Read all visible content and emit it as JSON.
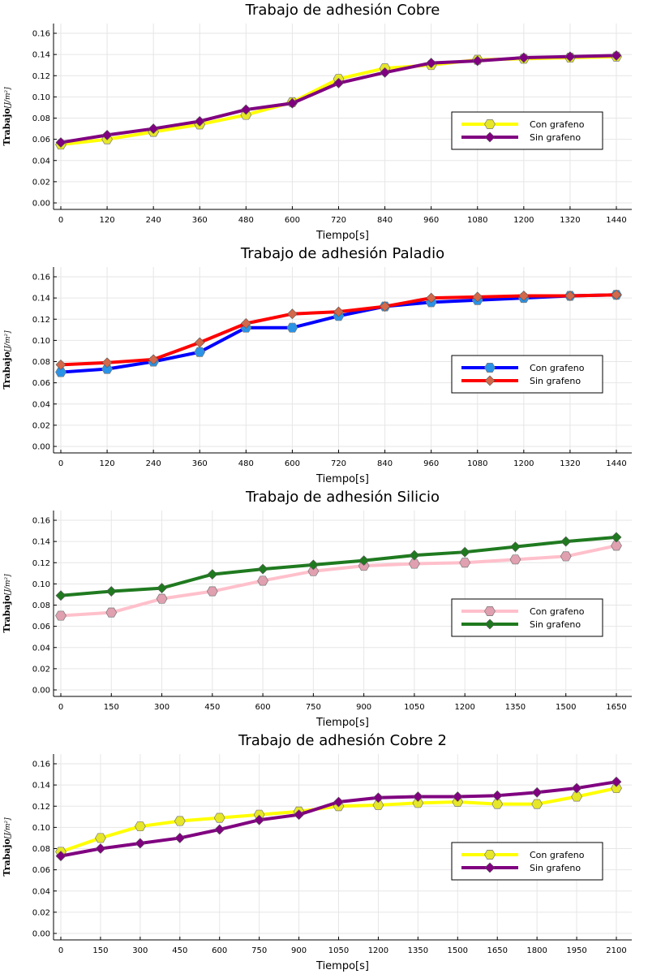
{
  "chart_data": [
    {
      "type": "line",
      "title": "Trabajo de adhesión Cobre",
      "xlabel": "Tiempo[s]",
      "ylabel": "Trabajo",
      "ylabel_unit": "[J/m²]",
      "x": [
        0,
        120,
        240,
        360,
        480,
        600,
        720,
        840,
        960,
        1080,
        1200,
        1320,
        1440
      ],
      "xlim": [
        0,
        1440
      ],
      "ylim": [
        0,
        0.16
      ],
      "yticks": [
        "0.00",
        "0.02",
        "0.04",
        "0.06",
        "0.08",
        "0.10",
        "0.12",
        "0.14",
        "0.16"
      ],
      "grid": true,
      "legend_position": "right",
      "series": [
        {
          "name": "Con grafeno",
          "color": "#ffff00",
          "marker": "hexagon",
          "marker_color": "#e6e62a",
          "values": [
            0.055,
            0.06,
            0.067,
            0.074,
            0.083,
            0.095,
            0.117,
            0.127,
            0.13,
            0.135,
            0.136,
            0.137,
            0.138
          ]
        },
        {
          "name": "Sin grafeno",
          "color": "#800080",
          "marker": "diamond",
          "marker_color": "#800080",
          "values": [
            0.057,
            0.064,
            0.07,
            0.077,
            0.088,
            0.094,
            0.113,
            0.123,
            0.132,
            0.134,
            0.137,
            0.138,
            0.139
          ]
        }
      ]
    },
    {
      "type": "line",
      "title": "Trabajo de adhesión Paladio",
      "xlabel": "Tiempo[s]",
      "ylabel": "Trabajo",
      "ylabel_unit": "[J/m²]",
      "x": [
        0,
        120,
        240,
        360,
        480,
        600,
        720,
        840,
        960,
        1080,
        1200,
        1320,
        1440
      ],
      "xlim": [
        0,
        1440
      ],
      "ylim": [
        0,
        0.16
      ],
      "yticks": [
        "0.00",
        "0.02",
        "0.04",
        "0.06",
        "0.08",
        "0.10",
        "0.12",
        "0.14",
        "0.16"
      ],
      "grid": true,
      "legend_position": "right",
      "series": [
        {
          "name": "Con grafeno",
          "color": "#0000ff",
          "marker": "hexagon",
          "marker_color": "#2a93e6",
          "values": [
            0.07,
            0.073,
            0.08,
            0.089,
            0.112,
            0.112,
            0.123,
            0.132,
            0.136,
            0.138,
            0.14,
            0.142,
            0.143
          ]
        },
        {
          "name": "Sin grafeno",
          "color": "#ff0000",
          "marker": "diamond",
          "marker_color": "#d2694a",
          "values": [
            0.077,
            0.079,
            0.082,
            0.098,
            0.116,
            0.125,
            0.127,
            0.132,
            0.14,
            0.141,
            0.142,
            0.142,
            0.143
          ]
        }
      ]
    },
    {
      "type": "line",
      "title": "Trabajo de adhesión Silicio",
      "xlabel": "Tiempo[s]",
      "ylabel": "Trabajo",
      "ylabel_unit": "[J/m²]",
      "x": [
        0,
        150,
        300,
        450,
        600,
        750,
        900,
        1050,
        1200,
        1350,
        1500,
        1650
      ],
      "xlim": [
        0,
        1650
      ],
      "ylim": [
        0,
        0.16
      ],
      "yticks": [
        "0.00",
        "0.02",
        "0.04",
        "0.06",
        "0.08",
        "0.10",
        "0.12",
        "0.14",
        "0.16"
      ],
      "grid": true,
      "legend_position": "right",
      "series": [
        {
          "name": "Con grafeno",
          "color": "#ffc0cb",
          "marker": "hexagon",
          "marker_color": "#e0a0b0",
          "values": [
            0.07,
            0.073,
            0.086,
            0.093,
            0.103,
            0.112,
            0.117,
            0.119,
            0.12,
            0.123,
            0.126,
            0.136
          ]
        },
        {
          "name": "Sin grafeno",
          "color": "#1f7a1f",
          "marker": "diamond",
          "marker_color": "#1f7a1f",
          "values": [
            0.089,
            0.093,
            0.096,
            0.109,
            0.114,
            0.118,
            0.122,
            0.127,
            0.13,
            0.135,
            0.14,
            0.144
          ]
        }
      ]
    },
    {
      "type": "line",
      "title": "Trabajo de adhesión Cobre 2",
      "xlabel": "Tiempo[s]",
      "ylabel": "Trabajo",
      "ylabel_unit": "[J/m²]",
      "x": [
        0,
        150,
        300,
        450,
        600,
        750,
        900,
        1050,
        1200,
        1350,
        1500,
        1650,
        1800,
        1950,
        2100
      ],
      "xlim": [
        0,
        2100
      ],
      "ylim": [
        0,
        0.16
      ],
      "yticks": [
        "0.00",
        "0.02",
        "0.04",
        "0.06",
        "0.08",
        "0.10",
        "0.12",
        "0.14",
        "0.16"
      ],
      "grid": true,
      "legend_position": "right",
      "series": [
        {
          "name": "Con grafeno",
          "color": "#ffff00",
          "marker": "hexagon",
          "marker_color": "#e6e62a",
          "values": [
            0.077,
            0.09,
            0.101,
            0.106,
            0.109,
            0.112,
            0.115,
            0.12,
            0.121,
            0.123,
            0.124,
            0.122,
            0.122,
            0.129,
            0.137
          ]
        },
        {
          "name": "Sin grafeno",
          "color": "#800080",
          "marker": "diamond",
          "marker_color": "#800080",
          "values": [
            0.073,
            0.08,
            0.085,
            0.09,
            0.098,
            0.107,
            0.112,
            0.124,
            0.128,
            0.129,
            0.129,
            0.13,
            0.133,
            0.137,
            0.143
          ]
        }
      ]
    }
  ]
}
